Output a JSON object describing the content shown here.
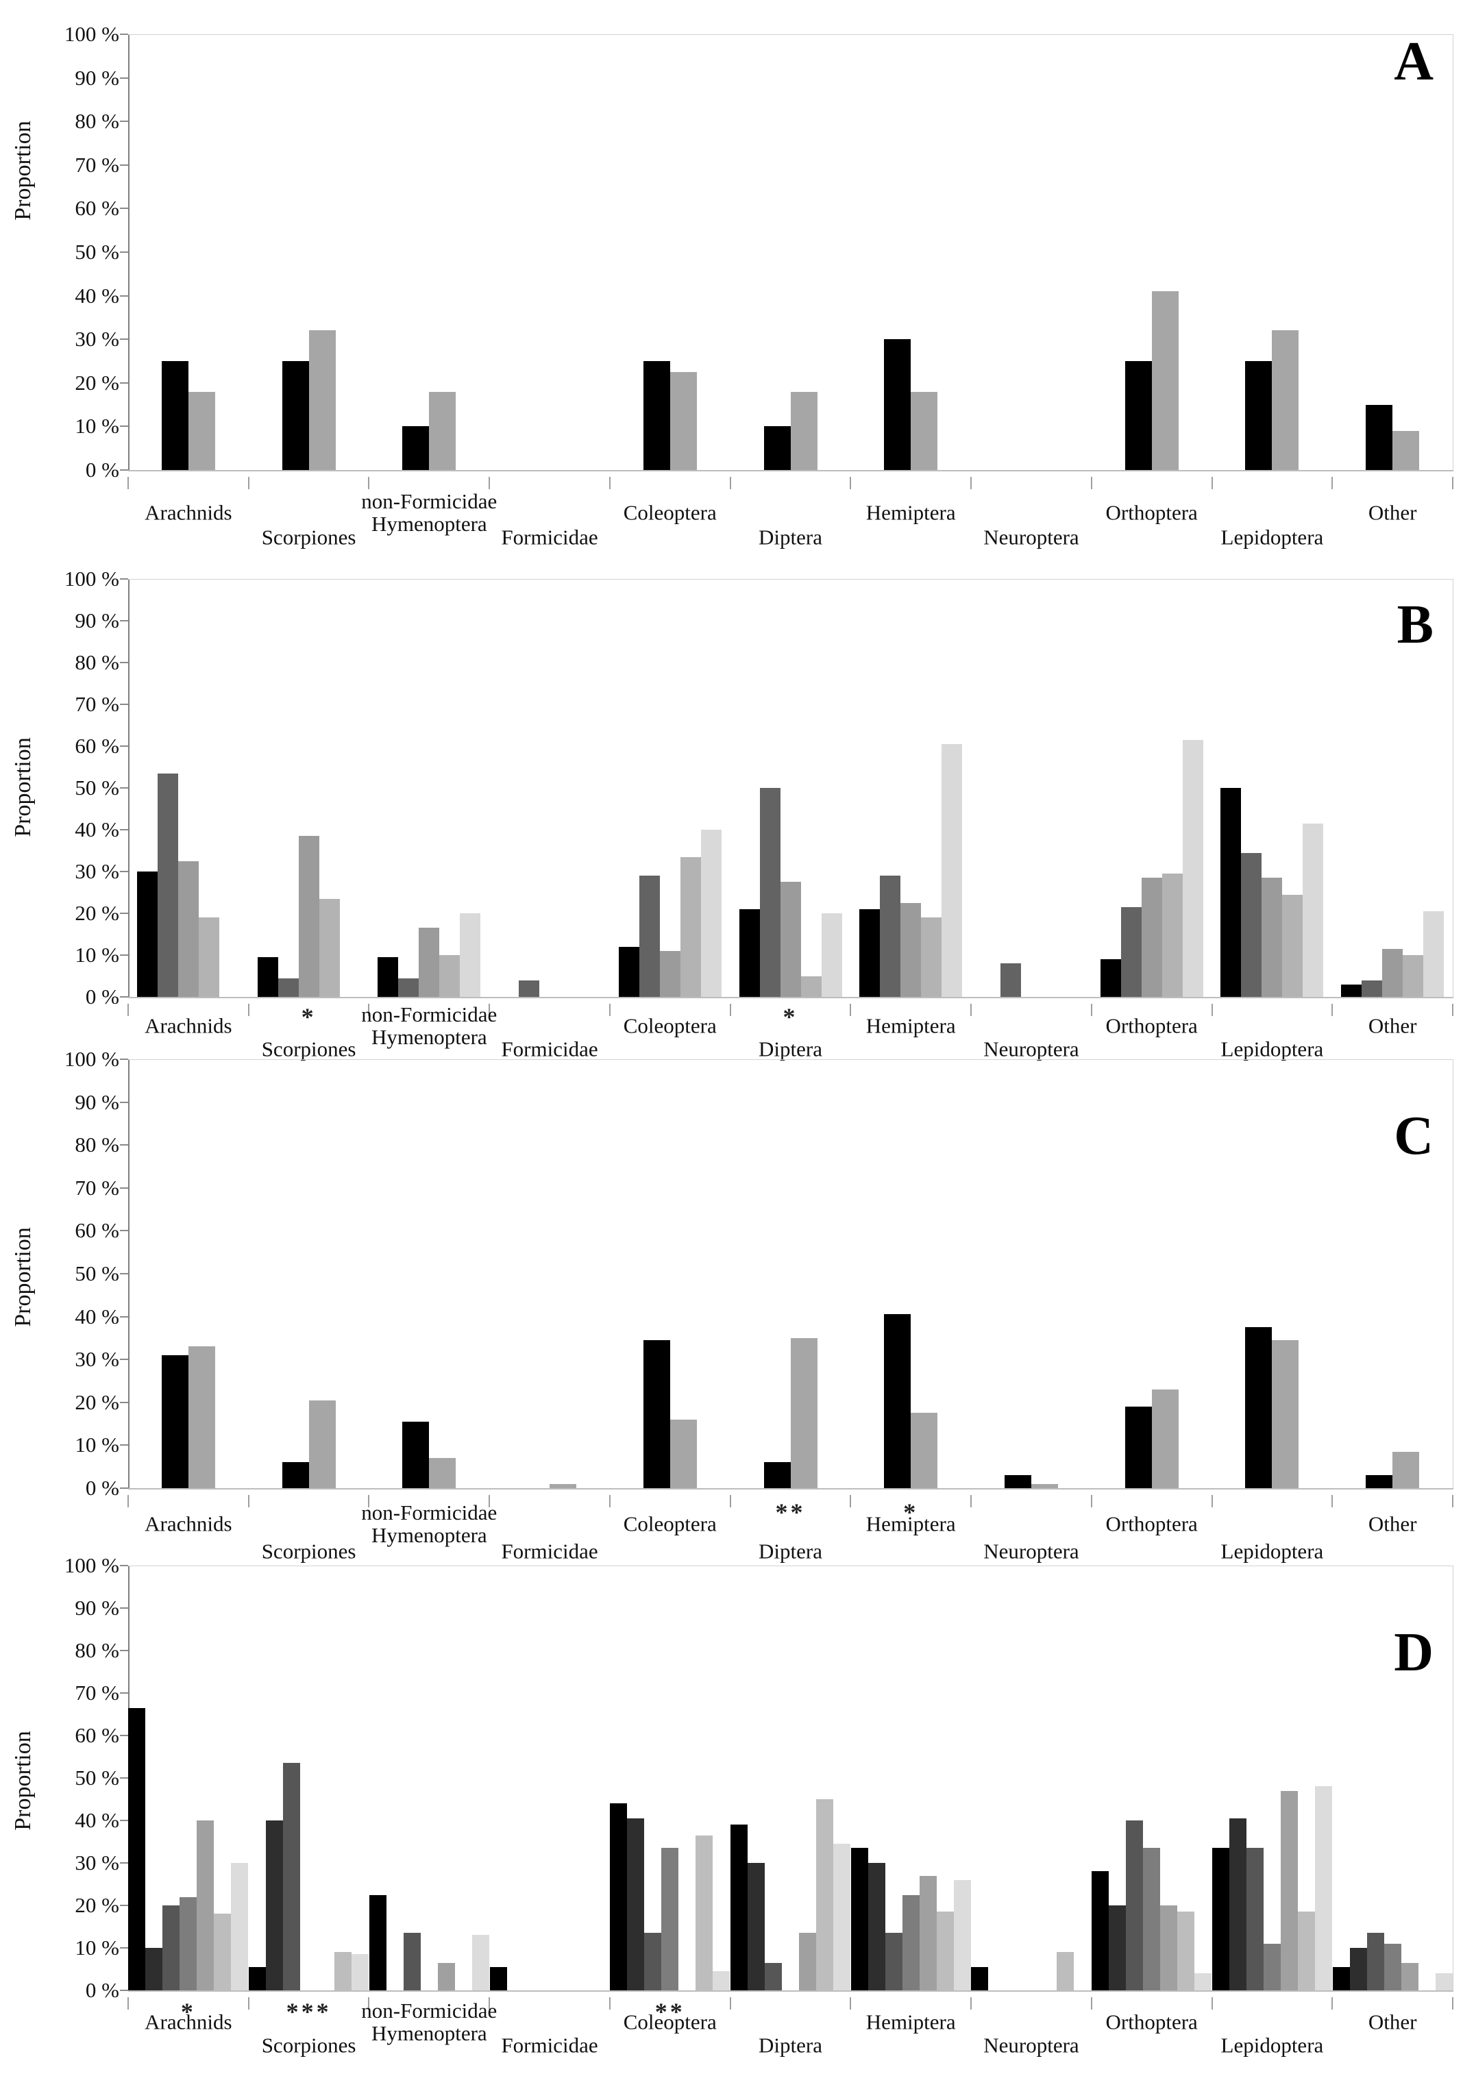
{
  "figure": {
    "ylabel": "Proportion",
    "background": "#ffffff",
    "ytick_labels": [
      "100 %",
      "90 %",
      "80 %",
      "70 %",
      "60 %",
      "50 %",
      "40 %",
      "30 %",
      "20 %",
      "10 %",
      "0 %"
    ]
  },
  "chart_data": [
    {
      "type": "bar",
      "panel": "A",
      "ylabel": "Proportion",
      "ylim": [
        0,
        100
      ],
      "grid": false,
      "legend": "none",
      "categories": [
        "Arachnids",
        "Scorpiones",
        "non-Formicidae\nHymenoptera",
        "Formicidae",
        "Coleoptera",
        "Diptera",
        "Hemiptera",
        "Neuroptera",
        "Orthoptera",
        "Lepidoptera",
        "Other"
      ],
      "series": [
        {
          "name": "series-1",
          "color": "#000000",
          "values": [
            25,
            25,
            10,
            0,
            25,
            10,
            30,
            0,
            25,
            25,
            15
          ]
        },
        {
          "name": "series-2",
          "color": "#a6a6a6",
          "values": [
            18,
            32,
            18,
            0,
            22.5,
            18,
            18,
            0,
            41,
            32,
            9
          ]
        }
      ],
      "significance": {}
    },
    {
      "type": "bar",
      "panel": "B",
      "ylabel": "Proportion",
      "ylim": [
        0,
        100
      ],
      "grid": false,
      "legend": "none",
      "categories": [
        "Arachnids",
        "Scorpiones",
        "non-Formicidae\nHymenoptera",
        "Formicidae",
        "Coleoptera",
        "Diptera",
        "Hemiptera",
        "Neuroptera",
        "Orthoptera",
        "Lepidoptera",
        "Other"
      ],
      "series": [
        {
          "name": "series-1",
          "color": "#000000",
          "values": [
            30,
            9.5,
            9.5,
            0,
            12,
            21,
            21,
            0,
            9,
            50,
            3
          ]
        },
        {
          "name": "series-2",
          "color": "#636363",
          "values": [
            53.5,
            4.5,
            4.5,
            4,
            29,
            50,
            29,
            8,
            21.5,
            34.5,
            4
          ]
        },
        {
          "name": "series-3",
          "color": "#9b9b9b",
          "values": [
            32.5,
            38.5,
            16.5,
            0,
            11,
            27.5,
            22.5,
            0,
            28.5,
            28.5,
            11.5
          ]
        },
        {
          "name": "series-4",
          "color": "#b3b3b3",
          "values": [
            19,
            23.5,
            10,
            0,
            33.5,
            5,
            19,
            0,
            29.5,
            24.5,
            10
          ]
        },
        {
          "name": "series-5",
          "color": "#d9d9d9",
          "values": [
            0,
            0,
            20,
            0,
            40,
            20,
            60.5,
            0,
            61.5,
            41.5,
            20.5
          ]
        }
      ],
      "significance": {
        "Scorpiones": "*",
        "Diptera": "*"
      }
    },
    {
      "type": "bar",
      "panel": "C",
      "ylabel": "Proportion",
      "ylim": [
        0,
        100
      ],
      "grid": false,
      "legend": "none",
      "categories": [
        "Arachnids",
        "Scorpiones",
        "non-Formicidae\nHymenoptera",
        "Formicidae",
        "Coleoptera",
        "Diptera",
        "Hemiptera",
        "Neuroptera",
        "Orthoptera",
        "Lepidoptera",
        "Other"
      ],
      "series": [
        {
          "name": "series-1",
          "color": "#000000",
          "values": [
            31,
            6,
            15.5,
            0,
            34.5,
            6,
            40.5,
            3,
            19,
            37.5,
            3
          ]
        },
        {
          "name": "series-2",
          "color": "#a6a6a6",
          "values": [
            33,
            20.5,
            7,
            1,
            16,
            35,
            17.5,
            1,
            23,
            34.5,
            8.5
          ]
        }
      ],
      "significance": {
        "Diptera": "**",
        "Hemiptera": "*"
      }
    },
    {
      "type": "bar",
      "panel": "D",
      "ylabel": "Proportion",
      "ylim": [
        0,
        100
      ],
      "grid": false,
      "legend": "none",
      "categories": [
        "Arachnids",
        "Scorpiones",
        "non-Formicidae\nHymenoptera",
        "Formicidae",
        "Coleoptera",
        "Diptera",
        "Hemiptera",
        "Neuroptera",
        "Orthoptera",
        "Lepidoptera",
        "Other"
      ],
      "series": [
        {
          "name": "series-1",
          "color": "#000000",
          "values": [
            66.5,
            5.5,
            22.5,
            5.5,
            44,
            39,
            33.5,
            5.5,
            28,
            33.5,
            5.5
          ]
        },
        {
          "name": "series-2",
          "color": "#2e2e2e",
          "values": [
            10,
            40,
            0,
            0,
            40.5,
            30,
            30,
            0,
            20,
            40.5,
            10
          ]
        },
        {
          "name": "series-3",
          "color": "#565656",
          "values": [
            20,
            53.5,
            13.5,
            0,
            13.5,
            6.5,
            13.5,
            0,
            40,
            33.5,
            13.5
          ]
        },
        {
          "name": "series-4",
          "color": "#7d7d7d",
          "values": [
            22,
            0,
            0,
            0,
            33.5,
            0,
            22.5,
            0,
            33.5,
            11,
            11
          ]
        },
        {
          "name": "series-5",
          "color": "#a0a0a0",
          "values": [
            40,
            0,
            6.5,
            0,
            0,
            13.5,
            27,
            0,
            20,
            47,
            6.5
          ]
        },
        {
          "name": "series-6",
          "color": "#bdbdbd",
          "values": [
            18,
            9,
            0,
            0,
            36.5,
            45,
            18.5,
            9,
            18.5,
            18.5,
            0
          ]
        },
        {
          "name": "series-7",
          "color": "#dcdcdc",
          "values": [
            30,
            8.5,
            13,
            0,
            4.5,
            34.5,
            26,
            0,
            4,
            48,
            4
          ]
        }
      ],
      "significance": {
        "Arachnids": "*",
        "Scorpiones": "***",
        "Coleoptera": "**"
      }
    }
  ]
}
